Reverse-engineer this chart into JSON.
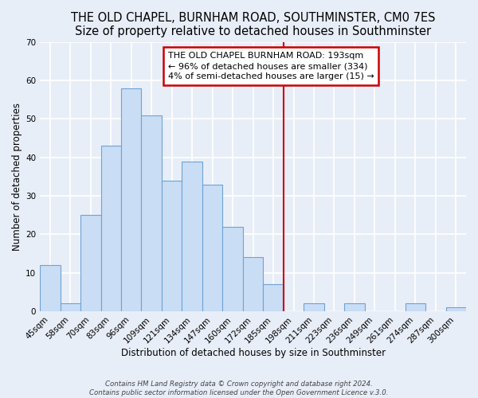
{
  "title": "THE OLD CHAPEL, BURNHAM ROAD, SOUTHMINSTER, CM0 7ES",
  "subtitle": "Size of property relative to detached houses in Southminster",
  "xlabel": "Distribution of detached houses by size in Southminster",
  "ylabel": "Number of detached properties",
  "bar_labels": [
    "45sqm",
    "58sqm",
    "70sqm",
    "83sqm",
    "96sqm",
    "109sqm",
    "121sqm",
    "134sqm",
    "147sqm",
    "160sqm",
    "172sqm",
    "185sqm",
    "198sqm",
    "211sqm",
    "223sqm",
    "236sqm",
    "249sqm",
    "261sqm",
    "274sqm",
    "287sqm",
    "300sqm"
  ],
  "bar_values": [
    12,
    2,
    25,
    43,
    58,
    51,
    34,
    39,
    33,
    22,
    14,
    7,
    0,
    2,
    0,
    2,
    0,
    0,
    2,
    0,
    1
  ],
  "bar_color": "#c9ddf5",
  "bar_edge_color": "#6ea3d4",
  "vline_color": "#cc0000",
  "annotation_text": "THE OLD CHAPEL BURNHAM ROAD: 193sqm\n← 96% of detached houses are smaller (334)\n4% of semi-detached houses are larger (15) →",
  "annotation_box_color": "#cc0000",
  "ylim": [
    0,
    70
  ],
  "yticks": [
    0,
    10,
    20,
    30,
    40,
    50,
    60,
    70
  ],
  "footer_line1": "Contains HM Land Registry data © Crown copyright and database right 2024.",
  "footer_line2": "Contains public sector information licensed under the Open Government Licence v.3.0.",
  "bg_color": "#e8eef8",
  "grid_color": "#ffffff",
  "title_fontsize": 10.5,
  "axis_fontsize": 8.5,
  "tick_fontsize": 7.5
}
